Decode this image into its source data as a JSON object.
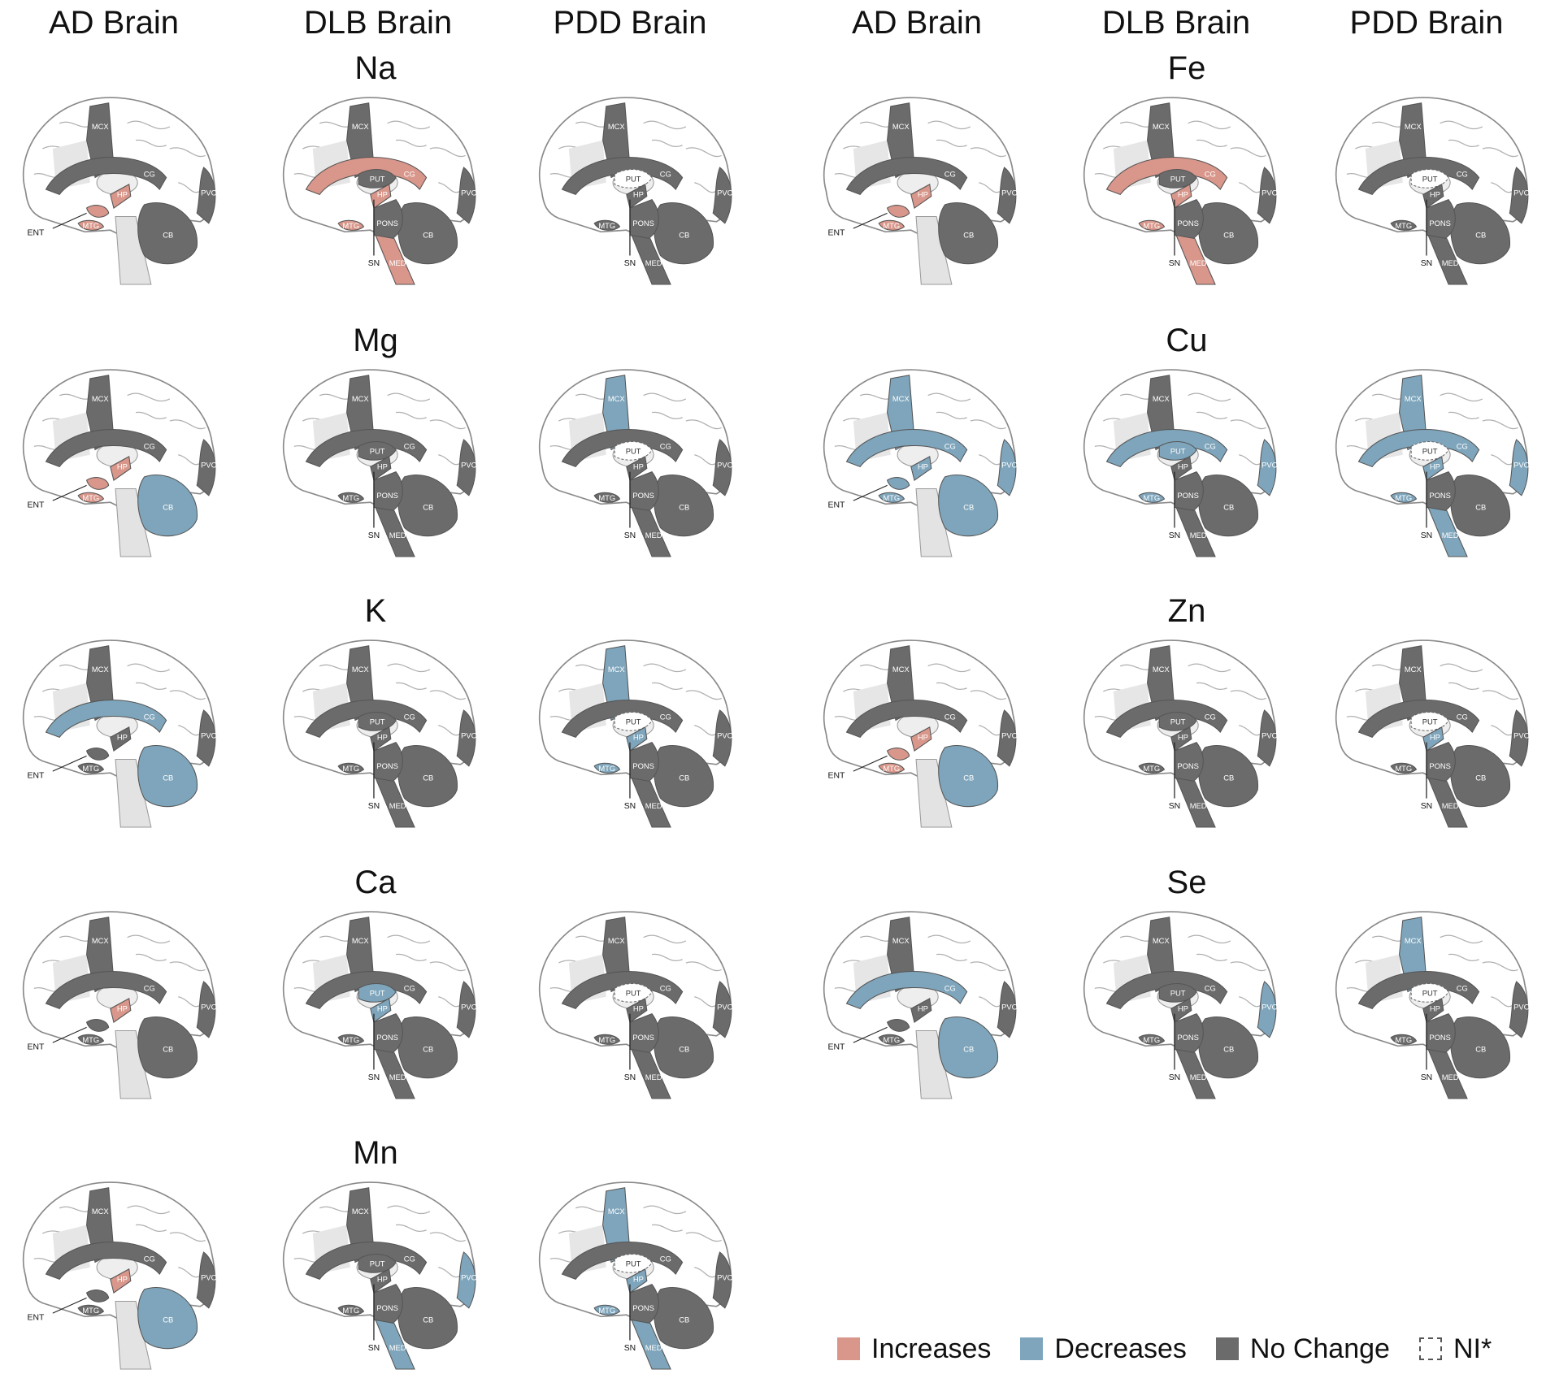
{
  "columns": [
    "AD Brain",
    "DLB Brain",
    "PDD Brain",
    "AD Brain",
    "DLB Brain",
    "PDD Brain"
  ],
  "colors": {
    "increase": "#d9968a",
    "decrease": "#7ea5bb",
    "nochange": "#6b6b6b",
    "ni": "#ffffff"
  },
  "regions": [
    "MCX",
    "CG",
    "PVC",
    "CB",
    "PUT",
    "HP",
    "MTG",
    "PONS",
    "MED",
    "SN",
    "ENT"
  ],
  "legend": [
    {
      "key": "increase",
      "label": "Increases"
    },
    {
      "key": "decrease",
      "label": "Decreases"
    },
    {
      "key": "nochange",
      "label": "No Change"
    },
    {
      "key": "ni",
      "label": "NI*"
    }
  ],
  "elements": [
    {
      "name": "Na",
      "block": "left",
      "row": 0,
      "brains": [
        {
          "type": "AD",
          "r": {
            "MCX": "n",
            "CG": "n",
            "PVC": "n",
            "CB": "n",
            "HP": "i",
            "MTG": "i",
            "ENT": "i"
          }
        },
        {
          "type": "DLB",
          "r": {
            "MCX": "n",
            "CG": "i",
            "PVC": "n",
            "CB": "n",
            "PUT": "n",
            "HP": "i",
            "MTG": "i",
            "PONS": "n",
            "MED": "i",
            "SN": "n"
          }
        },
        {
          "type": "PDD",
          "r": {
            "MCX": "n",
            "CG": "n",
            "PVC": "n",
            "CB": "n",
            "PUT": "x",
            "HP": "n",
            "MTG": "n",
            "PONS": "n",
            "MED": "n",
            "SN": "n"
          }
        }
      ]
    },
    {
      "name": "Mg",
      "block": "left",
      "row": 1,
      "brains": [
        {
          "type": "AD",
          "r": {
            "MCX": "n",
            "CG": "n",
            "PVC": "n",
            "CB": "d",
            "HP": "i",
            "MTG": "i",
            "ENT": "i"
          }
        },
        {
          "type": "DLB",
          "r": {
            "MCX": "n",
            "CG": "n",
            "PVC": "n",
            "CB": "n",
            "PUT": "n",
            "HP": "n",
            "MTG": "n",
            "PONS": "n",
            "MED": "n",
            "SN": "n"
          }
        },
        {
          "type": "PDD",
          "r": {
            "MCX": "d",
            "CG": "n",
            "PVC": "n",
            "CB": "n",
            "PUT": "x",
            "HP": "n",
            "MTG": "n",
            "PONS": "n",
            "MED": "n",
            "SN": "n"
          }
        }
      ]
    },
    {
      "name": "K",
      "block": "left",
      "row": 2,
      "brains": [
        {
          "type": "AD",
          "r": {
            "MCX": "n",
            "CG": "d",
            "PVC": "n",
            "CB": "d",
            "HP": "n",
            "MTG": "n",
            "ENT": "n"
          }
        },
        {
          "type": "DLB",
          "r": {
            "MCX": "n",
            "CG": "n",
            "PVC": "n",
            "CB": "n",
            "PUT": "n",
            "HP": "n",
            "MTG": "n",
            "PONS": "n",
            "MED": "n",
            "SN": "n"
          }
        },
        {
          "type": "PDD",
          "r": {
            "MCX": "d",
            "CG": "n",
            "PVC": "n",
            "CB": "n",
            "PUT": "x",
            "HP": "d",
            "MTG": "d",
            "PONS": "n",
            "MED": "n",
            "SN": "n"
          }
        }
      ]
    },
    {
      "name": "Ca",
      "block": "left",
      "row": 3,
      "brains": [
        {
          "type": "AD",
          "r": {
            "MCX": "n",
            "CG": "n",
            "PVC": "n",
            "CB": "n",
            "HP": "i",
            "MTG": "n",
            "ENT": "n"
          }
        },
        {
          "type": "DLB",
          "r": {
            "MCX": "n",
            "CG": "n",
            "PVC": "n",
            "CB": "n",
            "PUT": "d",
            "HP": "d",
            "MTG": "n",
            "PONS": "n",
            "MED": "n",
            "SN": "n"
          }
        },
        {
          "type": "PDD",
          "r": {
            "MCX": "n",
            "CG": "n",
            "PVC": "n",
            "CB": "n",
            "PUT": "x",
            "HP": "n",
            "MTG": "n",
            "PONS": "n",
            "MED": "n",
            "SN": "n"
          }
        }
      ]
    },
    {
      "name": "Mn",
      "block": "left",
      "row": 4,
      "brains": [
        {
          "type": "AD",
          "r": {
            "MCX": "n",
            "CG": "n",
            "PVC": "n",
            "CB": "d",
            "HP": "i",
            "MTG": "n",
            "ENT": "n"
          }
        },
        {
          "type": "DLB",
          "r": {
            "MCX": "n",
            "CG": "n",
            "PVC": "d",
            "CB": "n",
            "PUT": "n",
            "HP": "n",
            "MTG": "n",
            "PONS": "n",
            "MED": "d",
            "SN": "n"
          }
        },
        {
          "type": "PDD",
          "r": {
            "MCX": "d",
            "CG": "n",
            "PVC": "n",
            "CB": "n",
            "PUT": "x",
            "HP": "d",
            "MTG": "d",
            "PONS": "n",
            "MED": "d",
            "SN": "n"
          }
        }
      ]
    },
    {
      "name": "Fe",
      "block": "right",
      "row": 0,
      "brains": [
        {
          "type": "AD",
          "r": {
            "MCX": "n",
            "CG": "n",
            "PVC": "n",
            "CB": "n",
            "HP": "i",
            "MTG": "i",
            "ENT": "i"
          }
        },
        {
          "type": "DLB",
          "r": {
            "MCX": "n",
            "CG": "i",
            "PVC": "n",
            "CB": "n",
            "PUT": "n",
            "HP": "i",
            "MTG": "i",
            "PONS": "n",
            "MED": "i",
            "SN": "n"
          }
        },
        {
          "type": "PDD",
          "r": {
            "MCX": "n",
            "CG": "n",
            "PVC": "n",
            "CB": "n",
            "PUT": "x",
            "HP": "n",
            "MTG": "n",
            "PONS": "n",
            "MED": "n",
            "SN": "n"
          }
        }
      ]
    },
    {
      "name": "Cu",
      "block": "right",
      "row": 1,
      "brains": [
        {
          "type": "AD",
          "r": {
            "MCX": "d",
            "CG": "d",
            "PVC": "d",
            "CB": "d",
            "HP": "d",
            "MTG": "d",
            "ENT": "d"
          }
        },
        {
          "type": "DLB",
          "r": {
            "MCX": "n",
            "CG": "d",
            "PVC": "d",
            "CB": "n",
            "PUT": "d",
            "HP": "n",
            "MTG": "d",
            "PONS": "n",
            "MED": "n",
            "SN": "n"
          }
        },
        {
          "type": "PDD",
          "r": {
            "MCX": "d",
            "CG": "d",
            "PVC": "d",
            "CB": "n",
            "PUT": "x",
            "HP": "d",
            "MTG": "d",
            "PONS": "n",
            "MED": "d",
            "SN": "n"
          }
        }
      ]
    },
    {
      "name": "Zn",
      "block": "right",
      "row": 2,
      "brains": [
        {
          "type": "AD",
          "r": {
            "MCX": "n",
            "CG": "n",
            "PVC": "n",
            "CB": "d",
            "HP": "i",
            "MTG": "i",
            "ENT": "i"
          }
        },
        {
          "type": "DLB",
          "r": {
            "MCX": "n",
            "CG": "n",
            "PVC": "n",
            "CB": "n",
            "PUT": "n",
            "HP": "n",
            "MTG": "n",
            "PONS": "n",
            "MED": "n",
            "SN": "n"
          }
        },
        {
          "type": "PDD",
          "r": {
            "MCX": "n",
            "CG": "n",
            "PVC": "n",
            "CB": "n",
            "PUT": "x",
            "HP": "d",
            "MTG": "n",
            "PONS": "n",
            "MED": "n",
            "SN": "n"
          }
        }
      ]
    },
    {
      "name": "Se",
      "block": "right",
      "row": 3,
      "brains": [
        {
          "type": "AD",
          "r": {
            "MCX": "n",
            "CG": "d",
            "PVC": "n",
            "CB": "d",
            "HP": "n",
            "MTG": "n",
            "ENT": "n"
          }
        },
        {
          "type": "DLB",
          "r": {
            "MCX": "n",
            "CG": "n",
            "PVC": "d",
            "CB": "n",
            "PUT": "n",
            "HP": "n",
            "MTG": "n",
            "PONS": "n",
            "MED": "n",
            "SN": "n"
          }
        },
        {
          "type": "PDD",
          "r": {
            "MCX": "d",
            "CG": "n",
            "PVC": "n",
            "CB": "n",
            "PUT": "x",
            "HP": "n",
            "MTG": "n",
            "PONS": "n",
            "MED": "n",
            "SN": "n"
          }
        }
      ]
    }
  ]
}
